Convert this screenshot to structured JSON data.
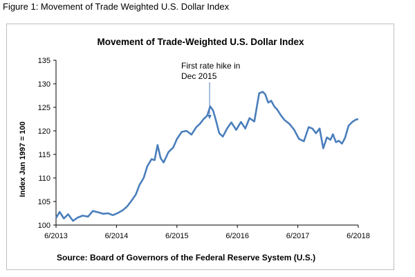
{
  "caption": "Figure 1: Movement of Trade Weighted U.S. Dollar Index",
  "chart_data": {
    "type": "line",
    "title": "Movement of Trade-Weighted U.S. Dollar Index",
    "ylabel": "Index Jan 1997 = 100",
    "xlabel": "",
    "ylim": [
      100,
      135
    ],
    "y_ticks": [
      "100",
      "105",
      "110",
      "115",
      "120",
      "125",
      "130",
      "135"
    ],
    "x_ticks": [
      "6/2013",
      "6/2014",
      "6/2015",
      "6/2016",
      "6/2017",
      "6/2018"
    ],
    "x_range_years": [
      2013.42,
      2018.42
    ],
    "grid": false,
    "legend": "none",
    "line_color": "#4a7ebb",
    "annotation": {
      "line1": "First rate hike in",
      "line2": "Dec 2015",
      "x_year": 2015.96,
      "y_value": 122.5
    },
    "source": "Source: Board of Governors of the Federal Reserve System (U.S.)",
    "series": [
      {
        "x": [
          2013.42,
          2013.48,
          2013.55,
          2013.62,
          2013.7,
          2013.78,
          2013.86,
          2013.95,
          2014.03,
          2014.12,
          2014.2,
          2014.28,
          2014.36,
          2014.45,
          2014.53,
          2014.6,
          2014.67,
          2014.74,
          2014.8,
          2014.87,
          2014.93,
          2015.0,
          2015.05,
          2015.1,
          2015.15,
          2015.2,
          2015.28,
          2015.36,
          2015.42,
          2015.5,
          2015.58,
          2015.66,
          2015.74,
          2015.8,
          2015.86,
          2015.92,
          2015.97,
          2016.02,
          2016.07,
          2016.12,
          2016.18,
          2016.25,
          2016.32,
          2016.4,
          2016.48,
          2016.55,
          2016.62,
          2016.7,
          2016.78,
          2016.84,
          2016.88,
          2016.93,
          2016.98,
          2017.03,
          2017.08,
          2017.14,
          2017.2,
          2017.28,
          2017.36,
          2017.44,
          2017.52,
          2017.6,
          2017.66,
          2017.72,
          2017.78,
          2017.84,
          2017.9,
          2017.96,
          2018.0,
          2018.05,
          2018.1,
          2018.15,
          2018.2,
          2018.26,
          2018.32,
          2018.38,
          2018.42
        ],
        "y": [
          101.5,
          102.8,
          101.4,
          102.3,
          100.9,
          101.6,
          102.0,
          101.8,
          103.0,
          102.7,
          102.4,
          102.5,
          102.1,
          102.6,
          103.2,
          104.0,
          105.2,
          106.5,
          108.5,
          110.0,
          112.5,
          114.0,
          113.8,
          117.0,
          114.2,
          113.3,
          115.5,
          116.5,
          118.3,
          119.8,
          120.0,
          119.2,
          120.8,
          121.5,
          122.5,
          123.2,
          125.2,
          124.3,
          122.0,
          119.5,
          118.8,
          120.5,
          121.8,
          120.2,
          121.9,
          120.5,
          122.7,
          122.0,
          128.0,
          128.3,
          127.8,
          126.0,
          126.4,
          125.2,
          124.5,
          123.3,
          122.3,
          121.5,
          120.2,
          118.3,
          117.8,
          120.8,
          120.5,
          119.5,
          120.5,
          116.3,
          118.6,
          118.1,
          119.3,
          117.6,
          117.9,
          117.3,
          118.5,
          121.1,
          121.9,
          122.4,
          122.5
        ]
      }
    ]
  }
}
